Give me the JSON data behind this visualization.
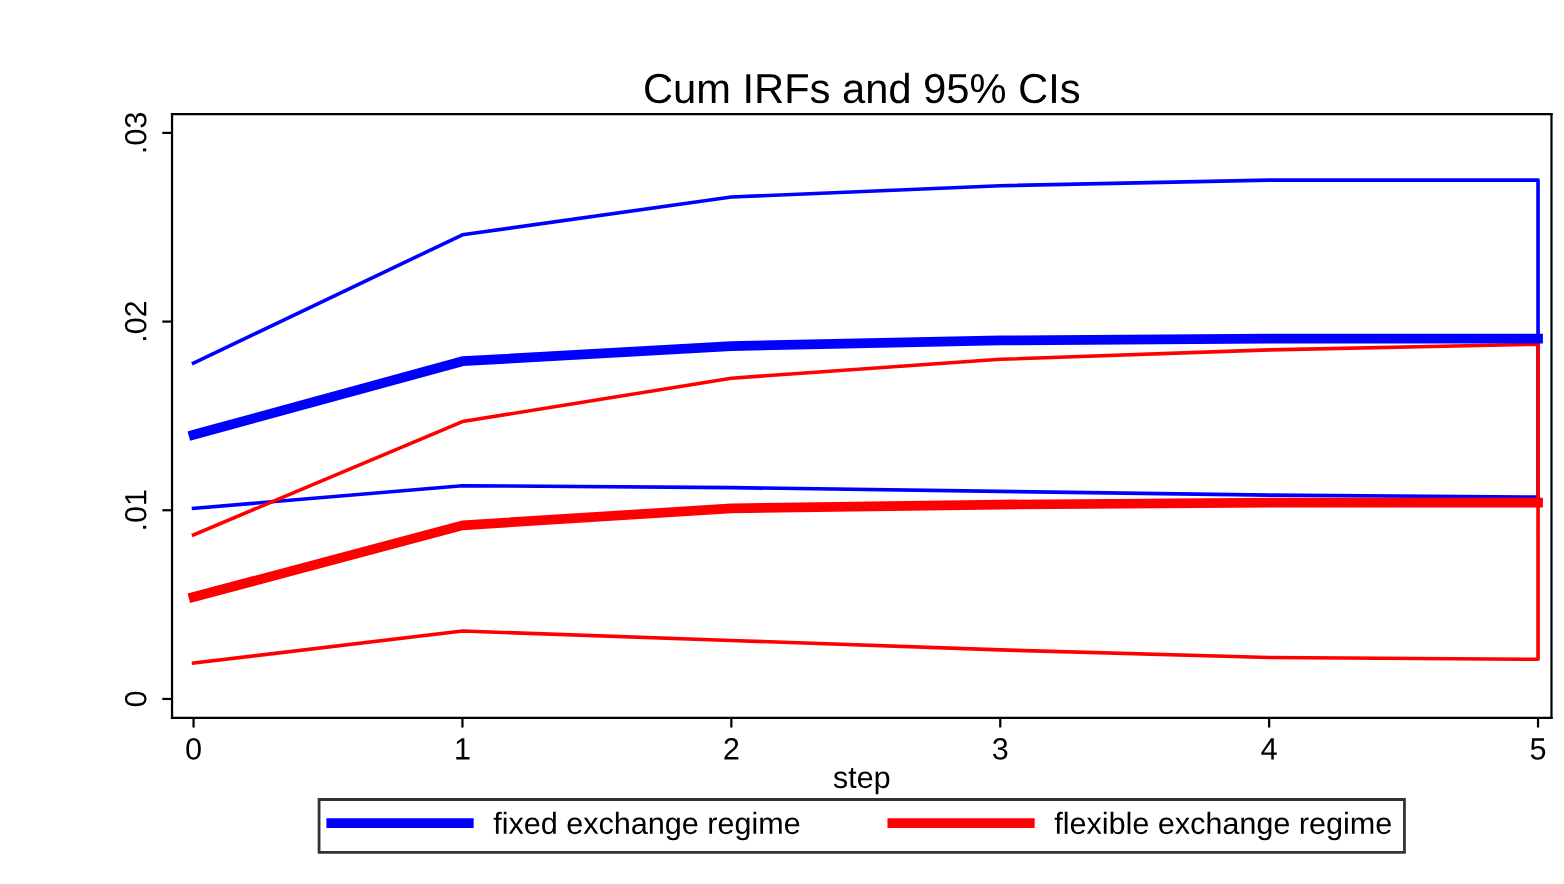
{
  "chart_data": {
    "type": "line",
    "title": "Cum IRFs and 95% CIs",
    "xlabel": "step",
    "xlim": [
      -0.08,
      5.05
    ],
    "xticks": [
      0,
      1,
      2,
      3,
      4,
      5
    ],
    "ylim": [
      -0.001,
      0.031
    ],
    "yticks": [
      {
        "value": 0,
        "label": "0"
      },
      {
        "value": 0.01,
        "label": ".01"
      },
      {
        "value": 0.02,
        "label": ".02"
      },
      {
        "value": 0.03,
        "label": ".03"
      }
    ],
    "grid": false,
    "legend": "bottom",
    "line_style": "solid",
    "marker": "none",
    "series": [
      {
        "name": "fixed exchange regime",
        "color": "#0000ff",
        "x": [
          0,
          1,
          2,
          3,
          4,
          5
        ],
        "values": [
          0.014,
          0.0179,
          0.0187,
          0.019,
          0.0191,
          0.0191
        ]
      },
      {
        "name": "flexible exchange regime",
        "color": "#ff0000",
        "x": [
          0,
          1,
          2,
          3,
          4,
          5
        ],
        "values": [
          0.0054,
          0.0092,
          0.0101,
          0.0103,
          0.0104,
          0.0104
        ]
      },
      {
        "color": "#0000ff",
        "x": [
          0,
          1,
          2,
          3,
          4,
          5,
          5,
          4,
          3,
          2,
          1,
          0
        ],
        "values": [
          0.0178,
          0.0246,
          0.0266,
          0.0272,
          0.0275,
          0.0275,
          0.0107,
          0.0108,
          0.011,
          0.0112,
          0.0113,
          0.0101
        ]
      },
      {
        "color": "#ff0000",
        "x": [
          0,
          1,
          2,
          3,
          4,
          5,
          5,
          4,
          3,
          2,
          1,
          0
        ],
        "values": [
          0.0087,
          0.0147,
          0.017,
          0.018,
          0.0185,
          0.0188,
          0.0021,
          0.0022,
          0.0026,
          0.0031,
          0.0036,
          0.0019
        ]
      }
    ]
  }
}
